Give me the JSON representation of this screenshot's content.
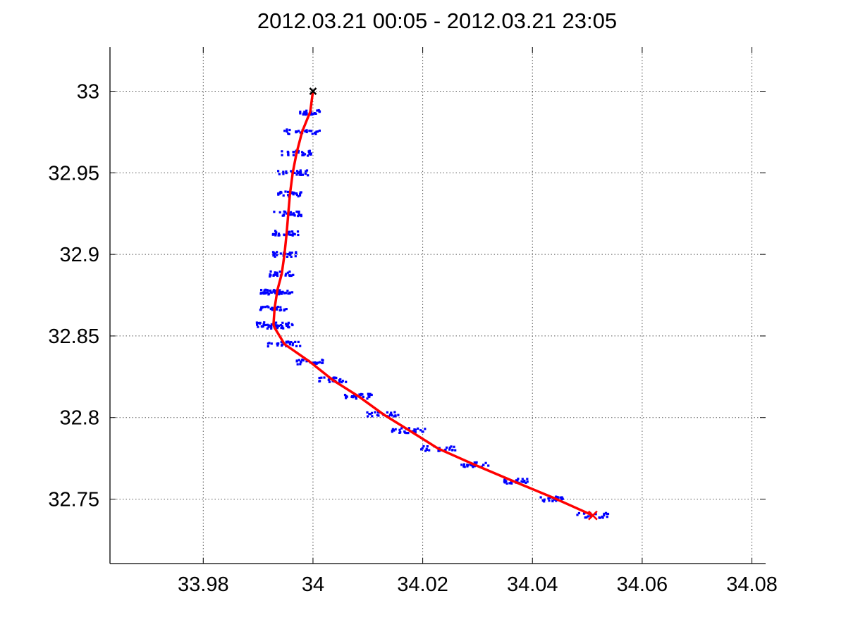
{
  "chart_data": {
    "type": "line",
    "title": "2012.03.21 00:05 - 2012.03.21 23:05",
    "xlabel": "",
    "ylabel": "",
    "xlim": [
      33.963,
      34.0825
    ],
    "ylim": [
      32.7105,
      33.027
    ],
    "x_ticks": [
      33.98,
      34.0,
      34.02,
      34.04,
      34.06,
      34.08
    ],
    "x_tick_labels": [
      "33.98",
      "34",
      "34.02",
      "34.04",
      "34.06",
      "34.08"
    ],
    "y_ticks": [
      32.75,
      32.8,
      32.85,
      32.9,
      32.95,
      33.0
    ],
    "y_tick_labels": [
      "32.75",
      "32.8",
      "32.85",
      "32.9",
      "32.95",
      "33"
    ],
    "grid": true,
    "grid_style": "dotted",
    "colors": {
      "track": "#ff0000",
      "scatter": "#0000ff",
      "start_marker": "#000000",
      "end_marker": "#ff0000"
    },
    "series": [
      {
        "style": "solid-line",
        "color": "#ff0000",
        "x": [
          34.0,
          33.9995,
          33.998,
          33.997,
          33.9963,
          33.9958,
          33.9955,
          33.9952,
          33.9948,
          33.9943,
          33.9935,
          33.993,
          33.9928,
          33.993,
          33.9932,
          33.9948,
          33.9995,
          34.0036,
          34.0083,
          34.0128,
          34.0176,
          34.0228,
          34.0295,
          34.0365,
          34.0437,
          34.051
        ],
        "y": [
          33.0,
          32.9875,
          32.975,
          32.962,
          32.95,
          32.937,
          32.925,
          32.913,
          32.9,
          32.888,
          32.878,
          32.867,
          32.857,
          32.855,
          32.854,
          32.845,
          32.834,
          32.823,
          32.813,
          32.802,
          32.792,
          32.781,
          32.771,
          32.761,
          32.751,
          32.74
        ]
      },
      {
        "style": "scatter-clusters",
        "color": "#0000ff",
        "x": [
          33.9995,
          33.998,
          33.997,
          33.9963,
          33.9958,
          33.9955,
          33.9952,
          33.9948,
          33.9943,
          33.9935,
          33.993,
          33.9928,
          33.993,
          33.9932,
          33.9948,
          33.9995,
          34.0036,
          34.0083,
          34.0128,
          34.0176,
          34.0228,
          34.0295,
          34.0365,
          34.0437,
          34.051
        ],
        "y": [
          32.987,
          32.975,
          32.962,
          32.95,
          32.937,
          32.925,
          32.913,
          32.9,
          32.888,
          32.877,
          32.877,
          32.867,
          32.857,
          32.856,
          32.845,
          32.834,
          32.823,
          32.813,
          32.802,
          32.792,
          32.781,
          32.771,
          32.761,
          32.75,
          32.74
        ]
      },
      {
        "style": "x-marker",
        "color": "#000000",
        "x": [
          34.0
        ],
        "y": [
          33.0
        ]
      },
      {
        "style": "x-marker",
        "color": "#ff0000",
        "x": [
          34.051
        ],
        "y": [
          32.74
        ]
      }
    ]
  }
}
